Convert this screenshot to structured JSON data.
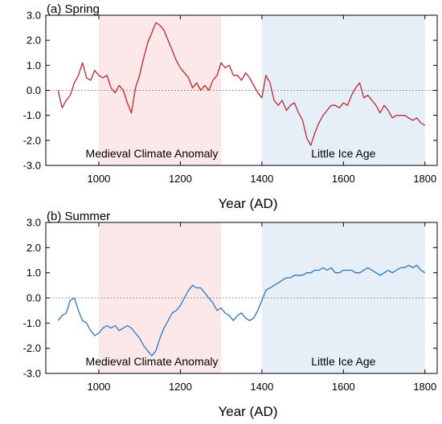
{
  "chart_data": [
    {
      "type": "line",
      "title": "(a) Spring",
      "xlabel": "Year (AD)",
      "ylabel": "",
      "xlim": [
        870,
        1830
      ],
      "ylim": [
        -3.0,
        3.0
      ],
      "x_ticks": [
        1000,
        1200,
        1400,
        1600,
        1800
      ],
      "y_ticks": [
        -3.0,
        -2.0,
        -1.0,
        0.0,
        1.0,
        2.0,
        3.0
      ],
      "y_tick_labels": [
        "-3.0",
        "-2.0",
        "-1.0",
        "0.0",
        "1.0",
        "2.0",
        "3.0"
      ],
      "zero_line": true,
      "shaded_periods": [
        {
          "label": "Medieval Climate Anomaly",
          "start": 1000,
          "end": 1300,
          "color": "#fce8e8"
        },
        {
          "label": "Little Ice Age",
          "start": 1400,
          "end": 1800,
          "color": "#e6eef8"
        }
      ],
      "series_color": "#c0272d",
      "series": [
        {
          "x": [
            900,
            910,
            920,
            930,
            940,
            950,
            960,
            970,
            980,
            990,
            1000,
            1010,
            1020,
            1030,
            1040,
            1050,
            1060,
            1070,
            1080,
            1090,
            1100,
            1110,
            1120,
            1130,
            1140,
            1150,
            1160,
            1170,
            1180,
            1190,
            1200,
            1210,
            1220,
            1230,
            1240,
            1250,
            1260,
            1270,
            1280,
            1290,
            1300,
            1310,
            1320,
            1330,
            1340,
            1350,
            1360,
            1370,
            1380,
            1390,
            1400,
            1410,
            1420,
            1430,
            1440,
            1450,
            1460,
            1470,
            1480,
            1490,
            1500,
            1510,
            1520,
            1530,
            1540,
            1550,
            1560,
            1570,
            1580,
            1590,
            1600,
            1610,
            1620,
            1630,
            1640,
            1650,
            1660,
            1670,
            1680,
            1690,
            1700,
            1710,
            1720,
            1730,
            1740,
            1750,
            1760,
            1770,
            1780,
            1790,
            1800
          ],
          "values": [
            0.0,
            -0.7,
            -0.4,
            -0.2,
            0.3,
            0.6,
            1.1,
            0.5,
            0.4,
            0.8,
            0.6,
            0.5,
            0.6,
            0.1,
            -0.1,
            0.2,
            0.0,
            -0.5,
            -0.9,
            0.1,
            0.6,
            1.3,
            1.9,
            2.3,
            2.7,
            2.6,
            2.4,
            2.0,
            1.6,
            1.2,
            0.9,
            0.7,
            0.5,
            0.1,
            0.3,
            0.0,
            0.2,
            0.0,
            0.4,
            0.6,
            1.1,
            0.9,
            1.0,
            0.6,
            0.6,
            0.4,
            0.7,
            0.5,
            0.2,
            -0.1,
            -0.3,
            0.6,
            0.3,
            -0.4,
            -0.6,
            -0.4,
            -0.8,
            -0.6,
            -0.5,
            -0.9,
            -1.2,
            -1.9,
            -2.2,
            -1.7,
            -1.3,
            -1.0,
            -0.8,
            -0.6,
            -0.6,
            -0.7,
            -0.5,
            -0.6,
            -0.2,
            0.1,
            0.3,
            -0.3,
            -0.2,
            -0.4,
            -0.6,
            -0.9,
            -0.6,
            -0.8,
            -1.1,
            -1.0,
            -1.0,
            -1.0,
            -1.1,
            -1.2,
            -1.1,
            -1.3,
            -1.4
          ]
        }
      ]
    },
    {
      "type": "line",
      "title": "(b) Summer",
      "xlabel": "Year (AD)",
      "ylabel": "",
      "xlim": [
        870,
        1830
      ],
      "ylim": [
        -3.0,
        3.0
      ],
      "x_ticks": [
        1000,
        1200,
        1400,
        1600,
        1800
      ],
      "y_ticks": [
        -3.0,
        -2.0,
        -1.0,
        0.0,
        1.0,
        2.0,
        3.0
      ],
      "y_tick_labels": [
        "-3.0",
        "-2.0",
        "-1.0",
        "0.0",
        "1.0",
        "2.0",
        "3.0"
      ],
      "zero_line": true,
      "shaded_periods": [
        {
          "label": "Medieval Climate Anomaly",
          "start": 1000,
          "end": 1300,
          "color": "#fce8e8"
        },
        {
          "label": "Little Ice Age",
          "start": 1400,
          "end": 1800,
          "color": "#e6eef8"
        }
      ],
      "series_color": "#2a76c4",
      "series": [
        {
          "x": [
            900,
            910,
            920,
            930,
            940,
            950,
            960,
            970,
            980,
            990,
            1000,
            1010,
            1020,
            1030,
            1040,
            1050,
            1060,
            1070,
            1080,
            1090,
            1100,
            1110,
            1120,
            1130,
            1140,
            1150,
            1160,
            1170,
            1180,
            1190,
            1200,
            1210,
            1220,
            1230,
            1240,
            1250,
            1260,
            1270,
            1280,
            1290,
            1300,
            1310,
            1320,
            1330,
            1340,
            1350,
            1360,
            1370,
            1380,
            1390,
            1400,
            1410,
            1420,
            1430,
            1440,
            1450,
            1460,
            1470,
            1480,
            1490,
            1500,
            1510,
            1520,
            1530,
            1540,
            1550,
            1560,
            1570,
            1580,
            1590,
            1600,
            1610,
            1620,
            1630,
            1640,
            1650,
            1660,
            1670,
            1680,
            1690,
            1700,
            1710,
            1720,
            1730,
            1740,
            1750,
            1760,
            1770,
            1780,
            1790,
            1800
          ],
          "values": [
            -0.9,
            -0.7,
            -0.6,
            -0.1,
            0.0,
            -0.5,
            -0.9,
            -1.0,
            -1.3,
            -1.5,
            -1.4,
            -1.2,
            -1.1,
            -1.2,
            -1.1,
            -1.3,
            -1.2,
            -1.1,
            -1.2,
            -1.4,
            -1.6,
            -1.9,
            -2.1,
            -2.3,
            -2.1,
            -1.6,
            -1.2,
            -0.9,
            -0.6,
            -0.5,
            -0.3,
            0.0,
            0.3,
            0.5,
            0.4,
            0.4,
            0.2,
            0.0,
            -0.2,
            -0.5,
            -0.4,
            -0.6,
            -0.7,
            -0.9,
            -0.7,
            -0.6,
            -0.8,
            -0.9,
            -0.8,
            -0.5,
            -0.1,
            0.3,
            0.4,
            0.5,
            0.6,
            0.7,
            0.8,
            0.8,
            0.9,
            0.9,
            0.9,
            1.0,
            1.0,
            1.1,
            1.1,
            1.2,
            1.1,
            1.2,
            1.0,
            1.0,
            1.1,
            1.1,
            1.1,
            1.0,
            1.0,
            1.1,
            1.2,
            1.1,
            1.0,
            0.9,
            1.0,
            1.1,
            1.0,
            1.1,
            1.2,
            1.2,
            1.3,
            1.2,
            1.3,
            1.1,
            1.0
          ]
        }
      ]
    }
  ]
}
